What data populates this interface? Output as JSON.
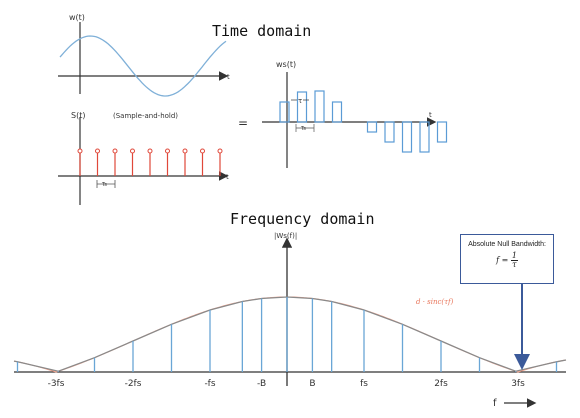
{
  "time_domain": {
    "title": "Time domain",
    "w_label": "w(t)",
    "t_label": "t",
    "s_label": "S(t)",
    "sample_hold_label": "(Sample-and-hold)",
    "ts_label": "Ts",
    "equals": "=",
    "ws_label": "ws(t)",
    "tau_label": "τ"
  },
  "frequency_domain": {
    "title": "Frequency domain",
    "ylabel": "|Ws(f)|",
    "xlabel": "f",
    "sinc_label": "d · sinc(τf)",
    "ticks": [
      "-3fs",
      "-2fs",
      "-fs",
      "-B",
      "B",
      "fs",
      "2fs",
      "3fs"
    ],
    "tick_positions_fs": [
      -3,
      -2,
      -1,
      -0.33,
      0.33,
      1,
      2,
      3
    ],
    "line_positions_fs": [
      -3.5,
      -2.97,
      -2.5,
      -2.0,
      -1.5,
      -1.0,
      -0.58,
      -0.33,
      0,
      0.33,
      0.58,
      1.0,
      1.5,
      2.0,
      2.5,
      2.97,
      3.5
    ],
    "sinc_color": "#f08a6b",
    "envelope_color": "#888888",
    "line_color": "#6aa6d6"
  },
  "callout": {
    "title": "Absolute Null Bandwidth:",
    "formula": "f = 1/τ",
    "formula_f": "f =",
    "formula_num": "1",
    "formula_den": "τ"
  }
}
